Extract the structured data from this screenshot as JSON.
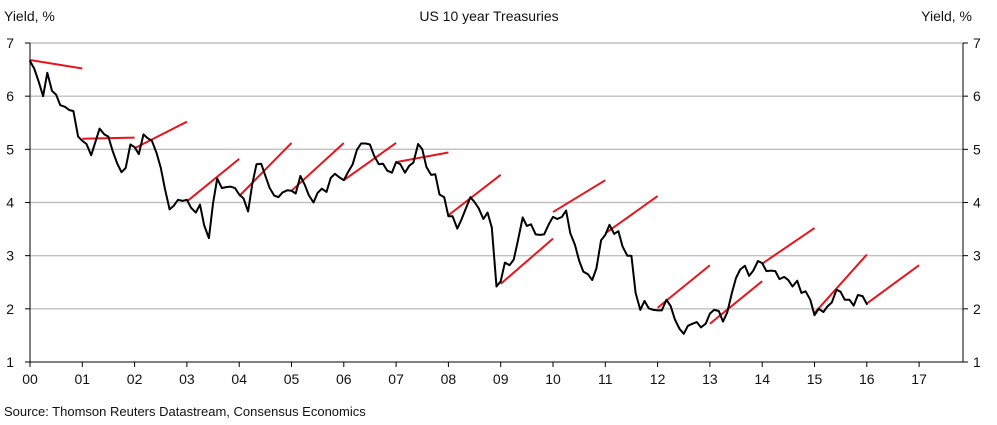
{
  "chart_data": {
    "type": "line",
    "title": "US 10 year Treasuries",
    "ylabel_left": "Yield, %",
    "ylabel_right": "Yield, %",
    "source": "Source: Thomson Reuters Datastream, Consensus Economics",
    "x_ticks": [
      "00",
      "01",
      "02",
      "03",
      "04",
      "05",
      "06",
      "07",
      "08",
      "09",
      "10",
      "11",
      "12",
      "13",
      "14",
      "15",
      "16",
      "17"
    ],
    "x_range": [
      2000,
      2018.2
    ],
    "y_ticks": [
      1,
      2,
      3,
      4,
      5,
      6,
      7
    ],
    "ylim": [
      1,
      7
    ],
    "grid": "horizontal",
    "colors": {
      "actual": "#000000",
      "forecast": "#e8141b",
      "grid": "#c0c0c0"
    },
    "series": [
      {
        "x": [
          2000.0,
          2000.08,
          2000.17,
          2000.25,
          2000.33,
          2000.42,
          2000.5,
          2000.58,
          2000.67,
          2000.75,
          2000.83,
          2000.92,
          2001.0,
          2001.08,
          2001.17,
          2001.25,
          2001.33,
          2001.42,
          2001.5,
          2001.58,
          2001.67,
          2001.75,
          2001.83,
          2001.92,
          2002.0,
          2002.08,
          2002.17,
          2002.25,
          2002.33,
          2002.42,
          2002.5,
          2002.58,
          2002.67,
          2002.75,
          2002.83,
          2002.92,
          2003.0,
          2003.08,
          2003.17,
          2003.25,
          2003.33,
          2003.42,
          2003.5,
          2003.58,
          2003.67,
          2003.75,
          2003.83,
          2003.92,
          2004.0,
          2004.08,
          2004.17,
          2004.25,
          2004.33,
          2004.42,
          2004.5,
          2004.58,
          2004.67,
          2004.75,
          2004.83,
          2004.92,
          2005.0,
          2005.08,
          2005.17,
          2005.25,
          2005.33,
          2005.42,
          2005.5,
          2005.58,
          2005.67,
          2005.75,
          2005.83,
          2005.92,
          2006.0,
          2006.08,
          2006.17,
          2006.25,
          2006.33,
          2006.42,
          2006.5,
          2006.58,
          2006.67,
          2006.75,
          2006.83,
          2006.92,
          2007.0,
          2007.08,
          2007.17,
          2007.25,
          2007.33,
          2007.42,
          2007.5,
          2007.58,
          2007.67,
          2007.75,
          2007.83,
          2007.92,
          2008.0,
          2008.08,
          2008.17,
          2008.25,
          2008.33,
          2008.42,
          2008.5,
          2008.58,
          2008.67,
          2008.75,
          2008.83,
          2008.92,
          2009.0,
          2009.08,
          2009.17,
          2009.25,
          2009.33,
          2009.42,
          2009.5,
          2009.58,
          2009.67,
          2009.75,
          2009.83,
          2009.92,
          2010.0,
          2010.08,
          2010.17,
          2010.25,
          2010.33,
          2010.42,
          2010.5,
          2010.58,
          2010.67,
          2010.75,
          2010.83,
          2010.92,
          2011.0,
          2011.08,
          2011.17,
          2011.25,
          2011.33,
          2011.42,
          2011.5,
          2011.58,
          2011.67,
          2011.75,
          2011.83,
          2011.92,
          2012.0,
          2012.08,
          2012.17,
          2012.25,
          2012.33,
          2012.42,
          2012.5,
          2012.58,
          2012.67,
          2012.75,
          2012.83,
          2012.92,
          2013.0,
          2013.08,
          2013.17,
          2013.25,
          2013.33,
          2013.42,
          2013.5,
          2013.58,
          2013.67,
          2013.75,
          2013.83,
          2013.92,
          2014.0,
          2014.08,
          2014.17,
          2014.25,
          2014.33,
          2014.42,
          2014.5,
          2014.58,
          2014.67,
          2014.75,
          2014.83,
          2014.92,
          2015.0,
          2015.08,
          2015.17,
          2015.25,
          2015.33,
          2015.42,
          2015.5,
          2015.58,
          2015.67,
          2015.75,
          2015.83,
          2015.92,
          2016.0
        ],
        "y": [
          6.66,
          6.52,
          6.26,
          6.0,
          6.44,
          6.1,
          6.03,
          5.83,
          5.8,
          5.74,
          5.72,
          5.24,
          5.16,
          5.1,
          4.89,
          5.14,
          5.39,
          5.28,
          5.24,
          4.97,
          4.73,
          4.57,
          4.65,
          5.09,
          5.04,
          4.91,
          5.28,
          5.21,
          5.16,
          4.93,
          4.65,
          4.26,
          3.87,
          3.94,
          4.05,
          4.03,
          4.05,
          3.9,
          3.81,
          3.96,
          3.57,
          3.33,
          3.98,
          4.45,
          4.27,
          4.29,
          4.3,
          4.27,
          4.15,
          4.08,
          3.83,
          4.35,
          4.72,
          4.73,
          4.5,
          4.28,
          4.13,
          4.1,
          4.19,
          4.23,
          4.22,
          4.17,
          4.5,
          4.34,
          4.14,
          4.0,
          4.18,
          4.26,
          4.2,
          4.46,
          4.54,
          4.47,
          4.42,
          4.57,
          4.72,
          4.99,
          5.11,
          5.11,
          5.09,
          4.88,
          4.72,
          4.73,
          4.6,
          4.56,
          4.76,
          4.72,
          4.56,
          4.69,
          4.75,
          5.1,
          5.0,
          4.67,
          4.52,
          4.53,
          4.15,
          4.1,
          3.74,
          3.74,
          3.51,
          3.68,
          3.88,
          4.1,
          4.01,
          3.89,
          3.69,
          3.81,
          3.53,
          2.42,
          2.52,
          2.87,
          2.82,
          2.93,
          3.29,
          3.72,
          3.56,
          3.59,
          3.4,
          3.39,
          3.4,
          3.59,
          3.73,
          3.69,
          3.73,
          3.85,
          3.42,
          3.2,
          2.91,
          2.7,
          2.65,
          2.54,
          2.76,
          3.29,
          3.39,
          3.58,
          3.41,
          3.46,
          3.17,
          3.0,
          3.0,
          2.3,
          1.98,
          2.15,
          2.01,
          1.98,
          1.97,
          1.97,
          2.17,
          2.05,
          1.8,
          1.62,
          1.53,
          1.68,
          1.72,
          1.75,
          1.65,
          1.72,
          1.91,
          1.98,
          1.96,
          1.76,
          1.93,
          2.3,
          2.58,
          2.74,
          2.81,
          2.62,
          2.72,
          2.9,
          2.86,
          2.71,
          2.72,
          2.71,
          2.56,
          2.6,
          2.54,
          2.42,
          2.53,
          2.3,
          2.33,
          2.17,
          1.88,
          2.0,
          1.94,
          2.05,
          2.12,
          2.36,
          2.32,
          2.17,
          2.17,
          2.06,
          2.26,
          2.24,
          2.09
        ]
      }
    ],
    "forecasts": [
      {
        "x": [
          2000.0,
          2001.0
        ],
        "y": [
          6.68,
          6.52
        ]
      },
      {
        "x": [
          2001.0,
          2002.0
        ],
        "y": [
          5.2,
          5.22
        ]
      },
      {
        "x": [
          2002.0,
          2003.0
        ],
        "y": [
          5.02,
          5.52
        ]
      },
      {
        "x": [
          2003.0,
          2004.0
        ],
        "y": [
          4.02,
          4.82
        ]
      },
      {
        "x": [
          2004.0,
          2005.0
        ],
        "y": [
          4.12,
          5.12
        ]
      },
      {
        "x": [
          2005.0,
          2006.0
        ],
        "y": [
          4.22,
          5.12
        ]
      },
      {
        "x": [
          2006.0,
          2007.0
        ],
        "y": [
          4.42,
          5.12
        ]
      },
      {
        "x": [
          2007.0,
          2008.0
        ],
        "y": [
          4.76,
          4.94
        ]
      },
      {
        "x": [
          2008.0,
          2009.0
        ],
        "y": [
          3.76,
          4.52
        ]
      },
      {
        "x": [
          2009.0,
          2010.0
        ],
        "y": [
          2.47,
          3.32
        ]
      },
      {
        "x": [
          2010.0,
          2011.0
        ],
        "y": [
          3.82,
          4.42
        ]
      },
      {
        "x": [
          2011.0,
          2012.0
        ],
        "y": [
          3.42,
          4.12
        ]
      },
      {
        "x": [
          2012.0,
          2013.0
        ],
        "y": [
          2.02,
          2.82
        ]
      },
      {
        "x": [
          2013.0,
          2014.0
        ],
        "y": [
          1.72,
          2.52
        ]
      },
      {
        "x": [
          2014.0,
          2015.0
        ],
        "y": [
          2.85,
          3.52
        ]
      },
      {
        "x": [
          2015.0,
          2016.0
        ],
        "y": [
          1.92,
          3.02
        ]
      },
      {
        "x": [
          2016.0,
          2017.0
        ],
        "y": [
          2.1,
          2.82
        ]
      }
    ]
  }
}
